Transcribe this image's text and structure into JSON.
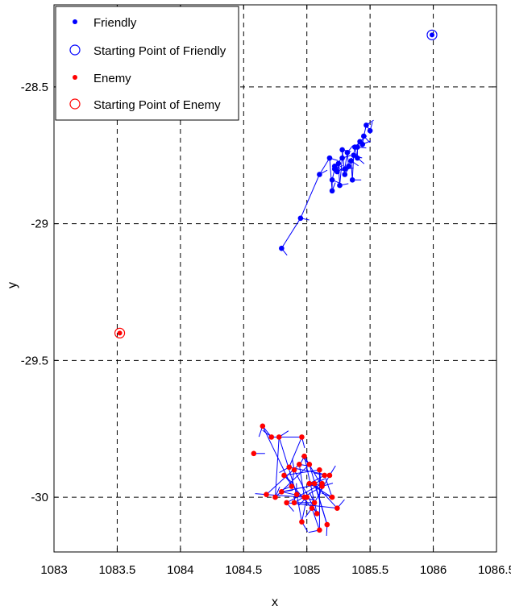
{
  "chart_data": {
    "type": "scatter",
    "xlabel": "x",
    "ylabel": "y",
    "xlim": [
      1083,
      1086.5
    ],
    "ylim": [
      -30.2,
      -28.2
    ],
    "x_ticks": [
      "1083",
      "1083.5",
      "1084",
      "1084.5",
      "1085",
      "1085.5",
      "1086",
      "1086.5"
    ],
    "y_ticks": [
      "-28.5",
      "-29",
      "-29.5",
      "-30"
    ],
    "grid": true,
    "legend_position": "top-left",
    "legend": [
      "Friendly",
      "Starting Point of Friendly",
      "Enemy",
      "Starting Point of Enemy"
    ],
    "colors": {
      "friendly": "#0000ff",
      "enemy": "#ff0000"
    },
    "series": [
      {
        "name": "Friendly",
        "marker": "dot",
        "color": "#0000ff",
        "x": [
          1084.8,
          1084.95,
          1085.1,
          1085.2,
          1085.18,
          1085.22,
          1085.25,
          1085.2,
          1085.28,
          1085.3,
          1085.22,
          1085.26,
          1085.32,
          1085.35,
          1085.3,
          1085.38,
          1085.4,
          1085.36,
          1085.42,
          1085.45,
          1085.4,
          1085.47,
          1085.5,
          1085.28,
          1085.24,
          1085.33,
          1085.37,
          1085.44
        ],
        "y": [
          -29.09,
          -28.98,
          -28.82,
          -28.88,
          -28.76,
          -28.8,
          -28.78,
          -28.84,
          -28.76,
          -28.82,
          -28.79,
          -28.86,
          -28.74,
          -28.77,
          -28.8,
          -28.72,
          -28.76,
          -28.84,
          -28.7,
          -28.68,
          -28.72,
          -28.64,
          -28.66,
          -28.73,
          -28.81,
          -28.79,
          -28.75,
          -28.71
        ]
      },
      {
        "name": "Starting Point of Friendly",
        "marker": "circle",
        "color": "#0000ff",
        "x": [
          1085.99
        ],
        "y": [
          -28.31
        ]
      },
      {
        "name": "Enemy",
        "marker": "dot",
        "color": "#ff0000",
        "x": [
          1084.58,
          1084.65,
          1084.72,
          1084.78,
          1084.96,
          1084.68,
          1084.75,
          1084.82,
          1084.86,
          1084.9,
          1084.94,
          1084.98,
          1085.02,
          1085.06,
          1085.1,
          1085.14,
          1085.18,
          1084.84,
          1084.88,
          1084.92,
          1084.98,
          1085.04,
          1085.08,
          1085.12,
          1085.16,
          1085.2,
          1085.24,
          1084.96,
          1085.1,
          1084.9,
          1085.02,
          1085.0,
          1085.06,
          1084.8,
          1085.12
        ],
        "y": [
          -29.84,
          -29.74,
          -29.78,
          -29.78,
          -29.78,
          -29.99,
          -30.0,
          -29.92,
          -29.89,
          -29.9,
          -29.88,
          -29.85,
          -29.88,
          -29.95,
          -29.9,
          -29.92,
          -29.92,
          -30.02,
          -29.96,
          -29.99,
          -30.0,
          -30.04,
          -30.06,
          -29.96,
          -30.1,
          -30.0,
          -30.04,
          -30.09,
          -30.12,
          -30.02,
          -29.95,
          -30.0,
          -30.02,
          -29.98,
          -29.95
        ]
      },
      {
        "name": "Starting Point of Enemy",
        "marker": "circle",
        "color": "#ff0000",
        "x": [
          1083.52
        ],
        "y": [
          -29.4
        ]
      }
    ]
  }
}
